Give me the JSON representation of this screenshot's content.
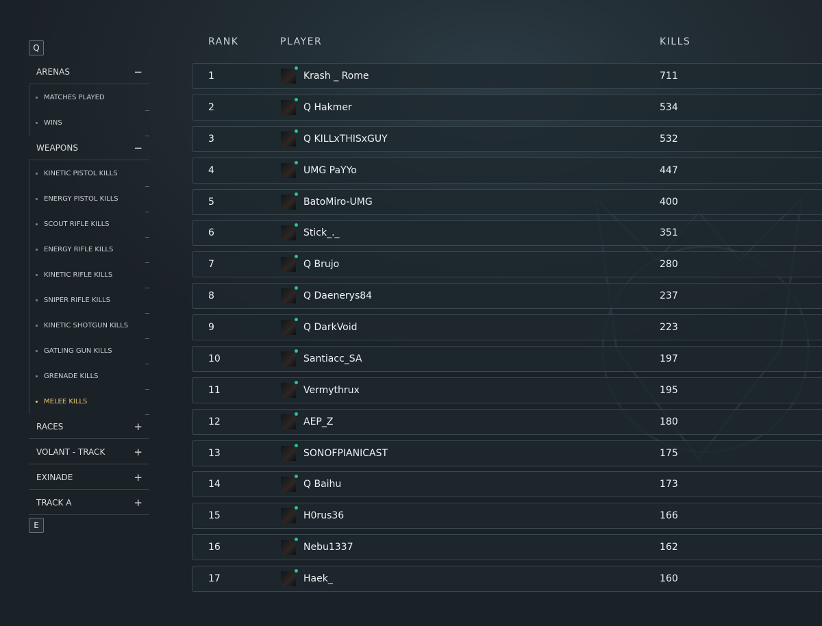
{
  "sidebar": {
    "top_key": "Q",
    "bottom_key": "E",
    "sections": [
      {
        "label": "ARENAS",
        "expanded": true,
        "items": [
          {
            "label": "MATCHES PLAYED"
          },
          {
            "label": "WINS"
          }
        ]
      },
      {
        "label": "WEAPONS",
        "expanded": true,
        "items": [
          {
            "label": "KINETIC PISTOL KILLS"
          },
          {
            "label": "ENERGY PISTOL KILLS"
          },
          {
            "label": "SCOUT RIFLE KILLS"
          },
          {
            "label": "ENERGY RIFLE KILLS"
          },
          {
            "label": "KINETIC RIFLE KILLS"
          },
          {
            "label": "SNIPER RIFLE KILLS"
          },
          {
            "label": "KINETIC SHOTGUN KILLS"
          },
          {
            "label": "GATLING GUN KILLS"
          },
          {
            "label": "GRENADE KILLS"
          },
          {
            "label": "MELEE KILLS",
            "active": true
          }
        ]
      },
      {
        "label": "RACES",
        "expanded": false,
        "items": []
      },
      {
        "label": "VOLANT - TRACK",
        "expanded": false,
        "items": []
      },
      {
        "label": "EXINADE",
        "expanded": false,
        "items": []
      },
      {
        "label": "TRACK A",
        "expanded": false,
        "items": []
      }
    ]
  },
  "table": {
    "headers": [
      "RANK",
      "PLAYER",
      "KILLS"
    ],
    "rows": [
      [
        1,
        "Krash _ Rome",
        711
      ],
      [
        2,
        "Q Hakmer",
        534
      ],
      [
        3,
        "Q KILLxTHISxGUY",
        532
      ],
      [
        4,
        "UMG PaYYo",
        447
      ],
      [
        5,
        "BatoMiro-UMG",
        400
      ],
      [
        6,
        "Stick_._",
        351
      ],
      [
        7,
        "Q Brujo",
        280
      ],
      [
        8,
        "Q Daenerys84",
        237
      ],
      [
        9,
        "Q DarkVoid",
        223
      ],
      [
        10,
        "Santiacc_SA",
        197
      ],
      [
        11,
        "Vermythrux",
        195
      ],
      [
        12,
        "AEP_Z",
        180
      ],
      [
        13,
        "SONOFPIANICAST",
        175
      ],
      [
        14,
        "Q Baihu",
        173
      ],
      [
        15,
        "H0rus36",
        166
      ],
      [
        16,
        "Nebu1337",
        162
      ],
      [
        17,
        "Haek_",
        160
      ]
    ]
  }
}
